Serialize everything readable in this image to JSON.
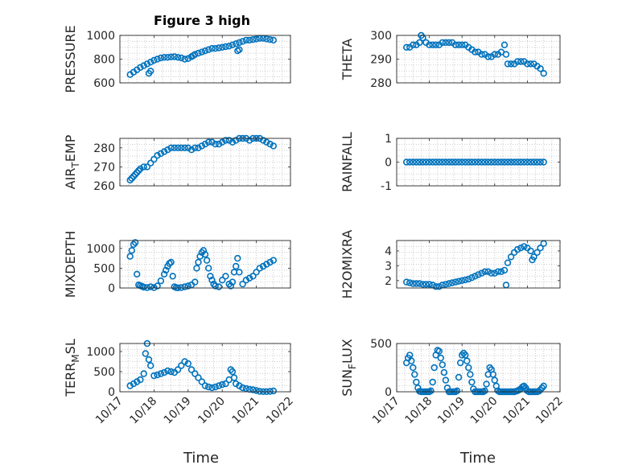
{
  "figure": {
    "title": "Figure 3 high",
    "xlabel_left": "Time",
    "xlabel_right": "Time",
    "xticks": [
      "10/17",
      "10/18",
      "10/19",
      "10/20",
      "10/21",
      "10/22"
    ],
    "grid": "minor dotted",
    "marker_color": "#0072BD",
    "axis_color": "#262626"
  },
  "chart_data": [
    {
      "type": "scatter",
      "label": "PRESSURE",
      "ylim": [
        600,
        1000
      ],
      "yticks": [
        "600",
        "800",
        "1000"
      ],
      "xlim": [
        0,
        5
      ],
      "x": [
        0.3,
        0.4,
        0.5,
        0.6,
        0.7,
        0.8,
        0.9,
        1.0,
        1.1,
        1.2,
        1.3,
        1.4,
        1.5,
        1.6,
        1.7,
        1.8,
        1.9,
        2.0,
        2.1,
        2.2,
        2.3,
        2.4,
        2.5,
        2.6,
        2.7,
        2.8,
        2.9,
        3.0,
        3.1,
        3.2,
        3.3,
        3.4,
        3.5,
        3.6,
        3.7,
        3.8,
        3.9,
        4.0,
        4.1,
        4.2,
        4.3,
        4.4,
        4.5,
        0.85,
        0.9,
        2.15,
        3.45,
        3.5
      ],
      "y": [
        670,
        690,
        710,
        730,
        745,
        760,
        775,
        790,
        800,
        810,
        815,
        815,
        818,
        820,
        815,
        810,
        800,
        805,
        820,
        840,
        850,
        860,
        870,
        880,
        890,
        890,
        895,
        900,
        905,
        910,
        920,
        930,
        940,
        950,
        960,
        960,
        965,
        970,
        975,
        975,
        970,
        965,
        960,
        680,
        700,
        830,
        870,
        880
      ]
    },
    {
      "type": "scatter",
      "label": "THETA",
      "ylim": [
        280,
        300
      ],
      "yticks": [
        "280",
        "290",
        "300"
      ],
      "xlim": [
        0,
        5
      ],
      "x": [
        0.3,
        0.4,
        0.5,
        0.6,
        0.7,
        0.75,
        0.8,
        0.9,
        1.0,
        1.1,
        1.2,
        1.3,
        1.4,
        1.5,
        1.6,
        1.7,
        1.8,
        1.9,
        2.0,
        2.1,
        2.2,
        2.3,
        2.4,
        2.5,
        2.6,
        2.7,
        2.8,
        2.9,
        3.0,
        3.1,
        3.2,
        3.3,
        3.35,
        3.4,
        3.5,
        3.6,
        3.7,
        3.8,
        3.9,
        4.0,
        4.1,
        4.2,
        4.3,
        4.4,
        4.5
      ],
      "y": [
        295,
        295,
        296,
        296,
        297,
        300,
        299,
        297,
        296,
        296,
        296,
        296,
        297,
        297,
        297,
        297,
        296,
        296,
        296,
        296,
        295,
        294,
        293,
        293,
        292,
        292,
        291,
        291,
        292,
        292,
        293,
        296,
        292,
        288,
        288,
        288,
        289,
        289,
        289,
        288,
        288,
        288,
        287,
        286,
        284
      ]
    },
    {
      "type": "scatter",
      "label": "AIR_TEMP",
      "ylim": [
        260,
        285
      ],
      "yticks": [
        "260",
        "270",
        "280"
      ],
      "xlim": [
        0,
        5
      ],
      "x": [
        0.3,
        0.35,
        0.4,
        0.45,
        0.5,
        0.55,
        0.6,
        0.7,
        0.8,
        0.9,
        1.0,
        1.1,
        1.2,
        1.3,
        1.4,
        1.5,
        1.6,
        1.7,
        1.8,
        1.9,
        2.0,
        2.1,
        2.2,
        2.3,
        2.4,
        2.5,
        2.6,
        2.7,
        2.8,
        2.9,
        3.0,
        3.1,
        3.2,
        3.3,
        3.4,
        3.5,
        3.6,
        3.7,
        3.8,
        3.9,
        4.0,
        4.1,
        4.2,
        4.3,
        4.4,
        4.5
      ],
      "y": [
        263,
        264,
        265,
        266,
        267,
        268,
        269,
        270,
        270,
        272,
        274,
        276,
        277,
        278,
        279,
        280,
        280,
        280,
        280,
        280,
        280,
        279,
        280,
        280,
        281,
        282,
        283,
        283,
        282,
        282,
        283,
        284,
        284,
        283,
        284,
        285,
        285,
        285,
        284,
        285,
        285,
        285,
        284,
        283,
        282,
        281
      ]
    },
    {
      "type": "scatter",
      "label": "RAINFALL",
      "ylim": [
        -1,
        1
      ],
      "yticks": [
        "-1",
        "0",
        "1"
      ],
      "xlim": [
        0,
        5
      ],
      "x": [
        0.3,
        0.4,
        0.5,
        0.6,
        0.7,
        0.8,
        0.9,
        1.0,
        1.1,
        1.2,
        1.3,
        1.4,
        1.5,
        1.6,
        1.7,
        1.8,
        1.9,
        2.0,
        2.1,
        2.2,
        2.3,
        2.4,
        2.5,
        2.6,
        2.7,
        2.8,
        2.9,
        3.0,
        3.1,
        3.2,
        3.3,
        3.4,
        3.5,
        3.6,
        3.7,
        3.8,
        3.9,
        4.0,
        4.1,
        4.2,
        4.3,
        4.4,
        4.5
      ],
      "y": [
        0,
        0,
        0,
        0,
        0,
        0,
        0,
        0,
        0,
        0,
        0,
        0,
        0,
        0,
        0,
        0,
        0,
        0,
        0,
        0,
        0,
        0,
        0,
        0,
        0,
        0,
        0,
        0,
        0,
        0,
        0,
        0,
        0,
        0,
        0,
        0,
        0,
        0,
        0,
        0,
        0,
        0,
        0
      ]
    },
    {
      "type": "scatter",
      "label": "MIXDEPTH",
      "ylim": [
        0,
        1200
      ],
      "yticks": [
        "0",
        "500",
        "1000"
      ],
      "xlim": [
        0,
        5
      ],
      "x": [
        0.3,
        0.35,
        0.4,
        0.45,
        0.5,
        0.55,
        0.6,
        0.65,
        0.7,
        0.8,
        0.9,
        1.0,
        1.1,
        1.2,
        1.3,
        1.35,
        1.4,
        1.45,
        1.5,
        1.55,
        1.6,
        1.65,
        1.7,
        1.8,
        1.9,
        2.0,
        2.1,
        2.2,
        2.25,
        2.3,
        2.35,
        2.4,
        2.45,
        2.5,
        2.55,
        2.6,
        2.65,
        2.7,
        2.75,
        2.8,
        2.9,
        3.0,
        3.1,
        3.2,
        3.25,
        3.3,
        3.35,
        3.4,
        3.45,
        3.5,
        3.6,
        3.7,
        3.8,
        3.9,
        4.0,
        4.1,
        4.2,
        4.3,
        4.4,
        4.5
      ],
      "y": [
        800,
        950,
        1100,
        1150,
        350,
        80,
        60,
        40,
        20,
        10,
        30,
        10,
        50,
        180,
        350,
        450,
        550,
        620,
        650,
        300,
        30,
        10,
        5,
        10,
        30,
        50,
        80,
        150,
        500,
        650,
        800,
        900,
        950,
        850,
        700,
        500,
        300,
        200,
        100,
        50,
        30,
        200,
        300,
        100,
        50,
        150,
        400,
        550,
        750,
        400,
        100,
        200,
        250,
        300,
        400,
        500,
        550,
        600,
        650,
        700
      ]
    },
    {
      "type": "scatter",
      "label": "H2OMIXRA",
      "ylim": [
        1.5,
        4.7
      ],
      "yticks": [
        "2",
        "3",
        "4"
      ],
      "xlim": [
        0,
        5
      ],
      "x": [
        0.3,
        0.4,
        0.5,
        0.6,
        0.7,
        0.8,
        0.9,
        1.0,
        1.1,
        1.2,
        1.3,
        1.4,
        1.5,
        1.6,
        1.7,
        1.8,
        1.9,
        2.0,
        2.1,
        2.2,
        2.3,
        2.4,
        2.5,
        2.6,
        2.7,
        2.8,
        2.9,
        3.0,
        3.1,
        3.2,
        3.3,
        3.35,
        3.4,
        3.5,
        3.6,
        3.7,
        3.8,
        3.9,
        4.0,
        4.1,
        4.15,
        4.2,
        4.3,
        4.4,
        4.5
      ],
      "y": [
        1.9,
        1.85,
        1.8,
        1.8,
        1.8,
        1.75,
        1.75,
        1.75,
        1.7,
        1.6,
        1.6,
        1.7,
        1.75,
        1.8,
        1.85,
        1.9,
        1.95,
        2.0,
        2.05,
        2.1,
        2.2,
        2.3,
        2.4,
        2.5,
        2.6,
        2.6,
        2.5,
        2.5,
        2.6,
        2.6,
        2.7,
        1.7,
        3.2,
        3.6,
        3.9,
        4.1,
        4.2,
        4.3,
        4.2,
        4.0,
        3.4,
        3.6,
        3.9,
        4.2,
        4.5
      ]
    },
    {
      "type": "scatter",
      "label": "TERR_MSL",
      "ylim": [
        0,
        1200
      ],
      "yticks": [
        "0",
        "500",
        "1000"
      ],
      "xlim": [
        0,
        5
      ],
      "x": [
        0.3,
        0.4,
        0.5,
        0.6,
        0.7,
        0.75,
        0.8,
        0.85,
        0.9,
        1.0,
        1.1,
        1.2,
        1.3,
        1.4,
        1.5,
        1.6,
        1.7,
        1.8,
        1.9,
        2.0,
        2.1,
        2.2,
        2.3,
        2.4,
        2.5,
        2.6,
        2.7,
        2.8,
        2.9,
        3.0,
        3.1,
        3.2,
        3.25,
        3.3,
        3.35,
        3.4,
        3.5,
        3.6,
        3.7,
        3.8,
        3.9,
        4.0,
        4.1,
        4.2,
        4.3,
        4.4,
        4.5
      ],
      "y": [
        150,
        200,
        250,
        300,
        450,
        950,
        1200,
        800,
        650,
        400,
        420,
        450,
        480,
        520,
        500,
        480,
        550,
        650,
        750,
        700,
        550,
        450,
        350,
        250,
        150,
        120,
        100,
        120,
        150,
        180,
        200,
        300,
        550,
        500,
        350,
        200,
        150,
        100,
        80,
        60,
        50,
        30,
        10,
        5,
        5,
        10,
        20
      ]
    },
    {
      "type": "scatter",
      "label": "SUN_FLUX",
      "ylim": [
        0,
        500
      ],
      "yticks": [
        "0",
        "500"
      ],
      "xlim": [
        0,
        5
      ],
      "x": [
        0.3,
        0.35,
        0.4,
        0.45,
        0.5,
        0.55,
        0.6,
        0.65,
        0.7,
        0.75,
        0.8,
        0.85,
        0.9,
        0.95,
        1.0,
        1.05,
        1.1,
        1.15,
        1.2,
        1.25,
        1.3,
        1.35,
        1.4,
        1.45,
        1.5,
        1.55,
        1.6,
        1.65,
        1.7,
        1.75,
        1.8,
        1.85,
        1.9,
        1.95,
        2.0,
        2.05,
        2.1,
        2.15,
        2.2,
        2.25,
        2.3,
        2.35,
        2.4,
        2.45,
        2.5,
        2.55,
        2.6,
        2.65,
        2.7,
        2.75,
        2.8,
        2.85,
        2.9,
        2.95,
        3.0,
        3.05,
        3.1,
        3.15,
        3.2,
        3.25,
        3.3,
        3.35,
        3.4,
        3.45,
        3.5,
        3.55,
        3.6,
        3.65,
        3.7,
        3.75,
        3.8,
        3.85,
        3.9,
        3.95,
        4.0,
        4.05,
        4.1,
        4.15,
        4.2,
        4.25,
        4.3,
        4.35,
        4.4,
        4.45,
        4.5
      ],
      "y": [
        300,
        350,
        380,
        320,
        250,
        180,
        100,
        40,
        5,
        0,
        0,
        0,
        0,
        0,
        0,
        10,
        100,
        250,
        380,
        430,
        420,
        350,
        280,
        200,
        120,
        40,
        0,
        0,
        0,
        0,
        0,
        10,
        150,
        300,
        380,
        400,
        380,
        320,
        250,
        180,
        100,
        30,
        0,
        0,
        0,
        0,
        0,
        0,
        10,
        80,
        180,
        250,
        230,
        180,
        120,
        60,
        10,
        0,
        0,
        0,
        0,
        0,
        0,
        0,
        0,
        0,
        0,
        5,
        10,
        20,
        30,
        50,
        60,
        40,
        10,
        0,
        0,
        0,
        0,
        0,
        0,
        5,
        20,
        40,
        60
      ]
    }
  ]
}
